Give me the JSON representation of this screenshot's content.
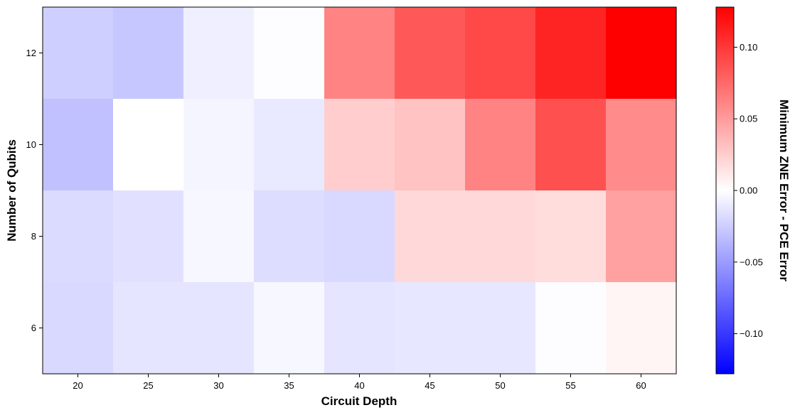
{
  "chart_data": {
    "type": "heatmap",
    "title": "",
    "xlabel": "Circuit Depth",
    "ylabel": "Number of Qubits",
    "colorbar_label": "Minimum ZNE Error - PCE Error",
    "x": [
      20,
      25,
      30,
      35,
      40,
      45,
      50,
      55,
      60
    ],
    "y": [
      12,
      10,
      8,
      6
    ],
    "y_ticks": [
      12,
      10,
      8,
      6
    ],
    "ylim": [
      5,
      13
    ],
    "x_tick_labels": [
      "20",
      "25",
      "30",
      "35",
      "40",
      "45",
      "50",
      "55",
      "60"
    ],
    "y_tick_labels": [
      "12",
      "10",
      "8",
      "6"
    ],
    "values": [
      [
        -0.024,
        -0.028,
        -0.008,
        -0.001,
        0.062,
        0.084,
        0.092,
        0.11,
        0.128
      ],
      [
        -0.031,
        0.0,
        -0.005,
        -0.011,
        0.025,
        0.03,
        0.062,
        0.088,
        0.058
      ],
      [
        -0.018,
        -0.015,
        -0.004,
        -0.017,
        -0.019,
        0.019,
        0.019,
        0.017,
        0.047
      ],
      [
        -0.019,
        -0.013,
        -0.013,
        -0.004,
        -0.013,
        -0.012,
        -0.012,
        -0.001,
        0.005
      ]
    ],
    "colorbar": {
      "min": -0.128,
      "max": 0.128,
      "ticks": [
        0.1,
        0.05,
        0.0,
        -0.05,
        -0.1
      ],
      "tick_labels": [
        "0.10",
        "0.05",
        "0.00",
        "−0.05",
        "−0.10"
      ],
      "colormap": "bwr",
      "low_color": "#0000ff",
      "mid_color": "#ffffff",
      "high_color": "#ff0000"
    },
    "grid": false
  }
}
